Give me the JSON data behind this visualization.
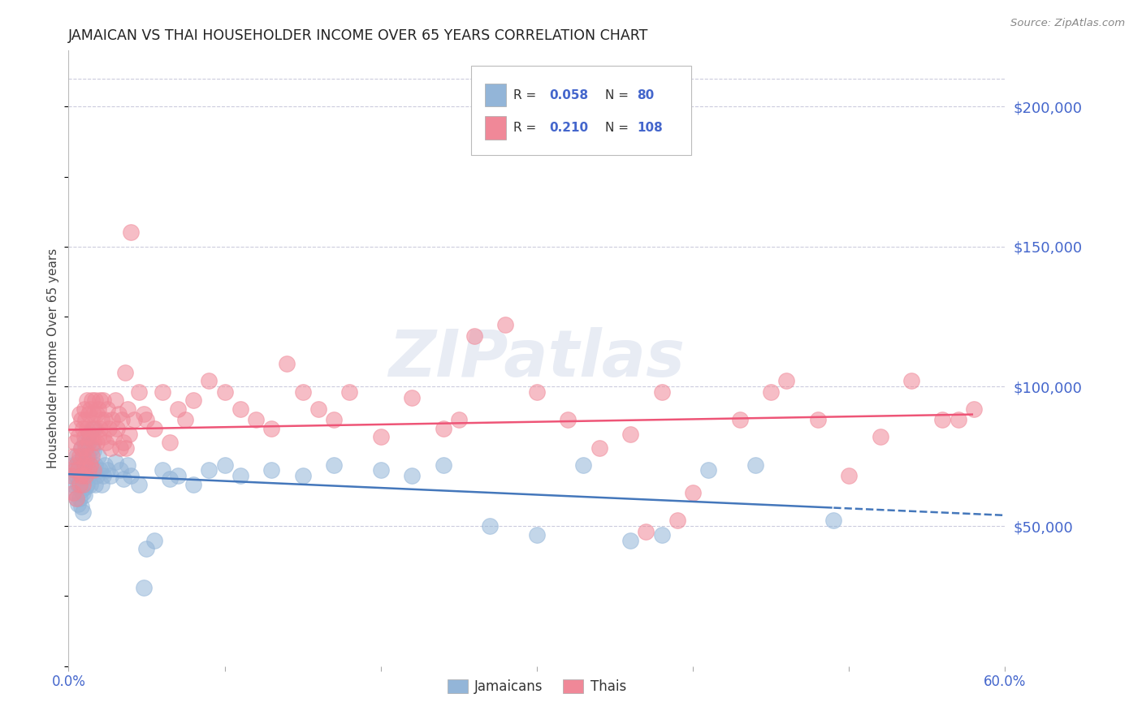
{
  "title": "JAMAICAN VS THAI HOUSEHOLDER INCOME OVER 65 YEARS CORRELATION CHART",
  "source": "Source: ZipAtlas.com",
  "ylabel": "Householder Income Over 65 years",
  "xlim": [
    0.0,
    0.6
  ],
  "ylim": [
    0,
    220000
  ],
  "xtick_values": [
    0.0,
    0.1,
    0.2,
    0.3,
    0.4,
    0.5,
    0.6
  ],
  "xtick_labels": [
    "0.0%",
    "",
    "",
    "",
    "",
    "",
    "60.0%"
  ],
  "ytick_labels": [
    "$50,000",
    "$100,000",
    "$150,000",
    "$200,000"
  ],
  "ytick_values": [
    50000,
    100000,
    150000,
    200000
  ],
  "title_color": "#222222",
  "axis_label_color": "#4466cc",
  "tick_label_color": "#4466cc",
  "grid_color": "#ccccdd",
  "watermark": "ZIPatlas",
  "jamaican_color": "#93b5d8",
  "thai_color": "#f08898",
  "jamaican_trend_color": "#4477bb",
  "thai_trend_color": "#ee5577",
  "jamaican_R": "0.058",
  "jamaican_N": "80",
  "thai_R": "0.210",
  "thai_N": "108",
  "jamaican_scatter": [
    [
      0.002,
      68000
    ],
    [
      0.003,
      72000
    ],
    [
      0.003,
      65000
    ],
    [
      0.004,
      70000
    ],
    [
      0.004,
      62000
    ],
    [
      0.005,
      75000
    ],
    [
      0.005,
      68000
    ],
    [
      0.005,
      60000
    ],
    [
      0.006,
      73000
    ],
    [
      0.006,
      65000
    ],
    [
      0.006,
      58000
    ],
    [
      0.007,
      72000
    ],
    [
      0.007,
      66000
    ],
    [
      0.007,
      60000
    ],
    [
      0.008,
      78000
    ],
    [
      0.008,
      70000
    ],
    [
      0.008,
      63000
    ],
    [
      0.008,
      57000
    ],
    [
      0.009,
      75000
    ],
    [
      0.009,
      68000
    ],
    [
      0.009,
      62000
    ],
    [
      0.009,
      55000
    ],
    [
      0.01,
      80000
    ],
    [
      0.01,
      73000
    ],
    [
      0.01,
      67000
    ],
    [
      0.01,
      61000
    ],
    [
      0.011,
      76000
    ],
    [
      0.011,
      70000
    ],
    [
      0.011,
      64000
    ],
    [
      0.012,
      79000
    ],
    [
      0.012,
      72000
    ],
    [
      0.012,
      65000
    ],
    [
      0.013,
      83000
    ],
    [
      0.013,
      75000
    ],
    [
      0.013,
      68000
    ],
    [
      0.014,
      72000
    ],
    [
      0.014,
      65000
    ],
    [
      0.015,
      78000
    ],
    [
      0.015,
      70000
    ],
    [
      0.016,
      85000
    ],
    [
      0.016,
      77000
    ],
    [
      0.017,
      72000
    ],
    [
      0.017,
      65000
    ],
    [
      0.018,
      68000
    ],
    [
      0.019,
      75000
    ],
    [
      0.02,
      70000
    ],
    [
      0.021,
      65000
    ],
    [
      0.022,
      68000
    ],
    [
      0.023,
      72000
    ],
    [
      0.025,
      70000
    ],
    [
      0.027,
      68000
    ],
    [
      0.03,
      73000
    ],
    [
      0.033,
      70000
    ],
    [
      0.035,
      67000
    ],
    [
      0.038,
      72000
    ],
    [
      0.04,
      68000
    ],
    [
      0.045,
      65000
    ],
    [
      0.048,
      28000
    ],
    [
      0.05,
      42000
    ],
    [
      0.055,
      45000
    ],
    [
      0.06,
      70000
    ],
    [
      0.065,
      67000
    ],
    [
      0.07,
      68000
    ],
    [
      0.08,
      65000
    ],
    [
      0.09,
      70000
    ],
    [
      0.1,
      72000
    ],
    [
      0.11,
      68000
    ],
    [
      0.13,
      70000
    ],
    [
      0.15,
      68000
    ],
    [
      0.17,
      72000
    ],
    [
      0.2,
      70000
    ],
    [
      0.22,
      68000
    ],
    [
      0.24,
      72000
    ],
    [
      0.27,
      50000
    ],
    [
      0.3,
      47000
    ],
    [
      0.33,
      72000
    ],
    [
      0.36,
      45000
    ],
    [
      0.38,
      47000
    ],
    [
      0.41,
      70000
    ],
    [
      0.44,
      72000
    ],
    [
      0.49,
      52000
    ]
  ],
  "thai_scatter": [
    [
      0.002,
      68000
    ],
    [
      0.003,
      75000
    ],
    [
      0.003,
      62000
    ],
    [
      0.004,
      80000
    ],
    [
      0.004,
      70000
    ],
    [
      0.005,
      85000
    ],
    [
      0.005,
      72000
    ],
    [
      0.005,
      60000
    ],
    [
      0.006,
      82000
    ],
    [
      0.006,
      70000
    ],
    [
      0.007,
      90000
    ],
    [
      0.007,
      75000
    ],
    [
      0.007,
      65000
    ],
    [
      0.008,
      88000
    ],
    [
      0.008,
      78000
    ],
    [
      0.008,
      68000
    ],
    [
      0.009,
      85000
    ],
    [
      0.009,
      75000
    ],
    [
      0.009,
      65000
    ],
    [
      0.01,
      92000
    ],
    [
      0.01,
      82000
    ],
    [
      0.01,
      72000
    ],
    [
      0.011,
      88000
    ],
    [
      0.011,
      78000
    ],
    [
      0.011,
      68000
    ],
    [
      0.012,
      95000
    ],
    [
      0.012,
      85000
    ],
    [
      0.012,
      75000
    ],
    [
      0.013,
      90000
    ],
    [
      0.013,
      80000
    ],
    [
      0.013,
      70000
    ],
    [
      0.014,
      92000
    ],
    [
      0.014,
      82000
    ],
    [
      0.014,
      72000
    ],
    [
      0.015,
      95000
    ],
    [
      0.015,
      85000
    ],
    [
      0.015,
      75000
    ],
    [
      0.016,
      90000
    ],
    [
      0.016,
      80000
    ],
    [
      0.016,
      70000
    ],
    [
      0.017,
      95000
    ],
    [
      0.017,
      85000
    ],
    [
      0.018,
      90000
    ],
    [
      0.018,
      80000
    ],
    [
      0.019,
      92000
    ],
    [
      0.019,
      82000
    ],
    [
      0.02,
      95000
    ],
    [
      0.02,
      85000
    ],
    [
      0.021,
      88000
    ],
    [
      0.022,
      95000
    ],
    [
      0.022,
      82000
    ],
    [
      0.023,
      88000
    ],
    [
      0.024,
      80000
    ],
    [
      0.025,
      92000
    ],
    [
      0.026,
      85000
    ],
    [
      0.027,
      78000
    ],
    [
      0.028,
      88000
    ],
    [
      0.029,
      82000
    ],
    [
      0.03,
      95000
    ],
    [
      0.031,
      85000
    ],
    [
      0.032,
      90000
    ],
    [
      0.033,
      78000
    ],
    [
      0.034,
      88000
    ],
    [
      0.035,
      80000
    ],
    [
      0.036,
      105000
    ],
    [
      0.037,
      78000
    ],
    [
      0.038,
      92000
    ],
    [
      0.039,
      83000
    ],
    [
      0.04,
      155000
    ],
    [
      0.042,
      88000
    ],
    [
      0.045,
      98000
    ],
    [
      0.048,
      90000
    ],
    [
      0.05,
      88000
    ],
    [
      0.055,
      85000
    ],
    [
      0.06,
      98000
    ],
    [
      0.065,
      80000
    ],
    [
      0.07,
      92000
    ],
    [
      0.075,
      88000
    ],
    [
      0.08,
      95000
    ],
    [
      0.09,
      102000
    ],
    [
      0.1,
      98000
    ],
    [
      0.11,
      92000
    ],
    [
      0.12,
      88000
    ],
    [
      0.13,
      85000
    ],
    [
      0.14,
      108000
    ],
    [
      0.15,
      98000
    ],
    [
      0.16,
      92000
    ],
    [
      0.17,
      88000
    ],
    [
      0.18,
      98000
    ],
    [
      0.2,
      82000
    ],
    [
      0.22,
      96000
    ],
    [
      0.24,
      85000
    ],
    [
      0.25,
      88000
    ],
    [
      0.26,
      118000
    ],
    [
      0.28,
      122000
    ],
    [
      0.3,
      98000
    ],
    [
      0.32,
      88000
    ],
    [
      0.34,
      78000
    ],
    [
      0.36,
      83000
    ],
    [
      0.37,
      48000
    ],
    [
      0.38,
      98000
    ],
    [
      0.39,
      52000
    ],
    [
      0.4,
      62000
    ],
    [
      0.43,
      88000
    ],
    [
      0.45,
      98000
    ],
    [
      0.46,
      102000
    ],
    [
      0.48,
      88000
    ],
    [
      0.5,
      68000
    ],
    [
      0.52,
      82000
    ],
    [
      0.54,
      102000
    ],
    [
      0.56,
      88000
    ],
    [
      0.57,
      88000
    ],
    [
      0.58,
      92000
    ]
  ]
}
